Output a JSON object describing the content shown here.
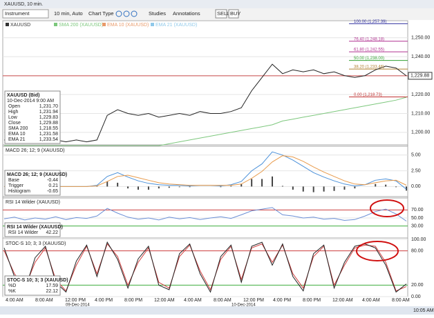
{
  "window_title": "XAUUSD, 10 min.",
  "toolbar": {
    "instrument": "Instrument",
    "interval": "10 min, Auto",
    "chart_type": "Chart Type",
    "studies": "Studies",
    "annotations": "Annotations",
    "sell": "SELL",
    "buy": "BUY"
  },
  "price_panel": {
    "legend": [
      "XAUUSD",
      "SMA 200 (XAUUSD)",
      "EMA 10 (XAUUSD)",
      "EMA 21 (XAUUSD)"
    ],
    "legend_colors": [
      "#333333",
      "#7cc77c",
      "#e89a6a",
      "#8fc9ea"
    ],
    "info": {
      "title": "XAUUSD (Bid)",
      "date": "10-Dec-2014 9:00 AM",
      "rows": [
        [
          "Open",
          "1,231.70"
        ],
        [
          "High",
          "1,231.94"
        ],
        [
          "Low",
          "1,229.83"
        ],
        [
          "Close",
          "1,229.88"
        ],
        [
          "SMA 200",
          "1,218.55"
        ],
        [
          "EMA 10",
          "1,231.58"
        ],
        [
          "EMA 21",
          "1,233.54"
        ]
      ]
    },
    "ylim": [
      1193.4,
      1259
    ],
    "yticks": [
      {
        "value": 1250,
        "label": "1,250.00"
      },
      {
        "value": 1240,
        "label": "1,240.00"
      },
      {
        "value": 1230,
        "label": "1,230.00"
      },
      {
        "value": 1220,
        "label": "1,220.00"
      },
      {
        "value": 1210,
        "label": "1,210.00"
      },
      {
        "value": 1200,
        "label": "1,200.00"
      }
    ],
    "series": [
      {
        "color": "#222222",
        "values": [
          1196,
          1195,
          1196,
          1195,
          1195,
          1196,
          1195,
          1196,
          1195,
          1196,
          1209,
          1212,
          1210,
          1209,
          1210,
          1208,
          1209,
          1210,
          1209,
          1211,
          1210,
          1210,
          1211,
          1213,
          1222,
          1229,
          1236,
          1231,
          1233,
          1232,
          1233,
          1231,
          1232,
          1230,
          1229,
          1230,
          1233,
          1235,
          1234,
          1229.88
        ]
      },
      {
        "color": "#7cc77c",
        "values": [
          1193,
          1193,
          1193,
          1193,
          1193,
          1193,
          1193,
          1193,
          1193,
          1193,
          1193,
          1193,
          1193,
          1193,
          1193,
          1193,
          1194,
          1195,
          1196,
          1197,
          1198,
          1199,
          1200,
          1201,
          1202,
          1203,
          1204,
          1206,
          1207,
          1208,
          1209,
          1210,
          1211,
          1212,
          1213,
          1214,
          1215,
          1216,
          1217,
          1218.55
        ]
      }
    ],
    "last_price": {
      "value": 1229.88,
      "label": "1,229.88"
    },
    "fib_levels": [
      {
        "value": 1257.39,
        "label": "100.00 (1,257.39)",
        "color": "#3030a0"
      },
      {
        "value": 1248.18,
        "label": "76.40 (1,248.18)",
        "color": "#b03090"
      },
      {
        "value": 1242.55,
        "label": "61.80 (1,242.55)",
        "color": "#b03090"
      },
      {
        "value": 1238,
        "label": "50.00 (1,238.00)",
        "color": "#30a030"
      },
      {
        "value": 1233.46,
        "label": "38.20 (1,233.46)",
        "color": "#b08030"
      },
      {
        "value": 1218.73,
        "label": "0.00 (1,218.73)",
        "color": "#c03030"
      }
    ]
  },
  "macd_panel": {
    "header": "MACD 26; 12; 9 (XAUUSD)",
    "info": {
      "title": "MACD 26; 12; 9 (XAUUSD)",
      "rows": [
        [
          "Base",
          "-0.44"
        ],
        [
          "Trigger",
          "0.21"
        ],
        [
          "Histogram",
          "-0.65"
        ]
      ]
    },
    "ylim": [
      -1.6,
      6.4
    ],
    "yticks": [
      {
        "value": 5,
        "label": "5.00"
      },
      {
        "value": 2.5,
        "label": "2.50"
      },
      {
        "value": 0,
        "label": "0.00"
      }
    ],
    "series": [
      {
        "color": "#4a90d9",
        "values": [
          0,
          0,
          0,
          0,
          0,
          0,
          0,
          0,
          0,
          0.2,
          1.6,
          2.2,
          1.5,
          0.9,
          0.5,
          0.3,
          0.2,
          0.2,
          0.1,
          0.2,
          0.2,
          0.1,
          0.3,
          0.8,
          2.5,
          3.6,
          5.5,
          5,
          4.2,
          3.2,
          2.2,
          1.5,
          0.9,
          0.4,
          0.1,
          0.3,
          1,
          1.2,
          0.9,
          -0.44
        ]
      },
      {
        "color": "#e89a4a",
        "values": [
          0,
          0,
          0,
          0,
          0,
          0,
          0,
          0,
          0,
          0.1,
          0.8,
          1.6,
          1.8,
          1.4,
          1,
          0.6,
          0.4,
          0.3,
          0.2,
          0.2,
          0.2,
          0.2,
          0.2,
          0.4,
          1.3,
          2.4,
          3.9,
          4.9,
          4.7,
          4,
          3.1,
          2.3,
          1.6,
          0.9,
          0.4,
          0.3,
          0.6,
          0.9,
          1,
          0.21
        ]
      }
    ],
    "histogram": [
      0,
      0,
      0,
      0,
      0,
      0,
      0,
      0,
      0,
      0.1,
      0.8,
      0.6,
      -0.3,
      -0.5,
      -0.5,
      -0.3,
      -0.2,
      -0.1,
      -0.1,
      0,
      0,
      -0.1,
      0.1,
      0.4,
      1.2,
      1.2,
      1.6,
      0.1,
      -0.5,
      -0.8,
      -0.9,
      -0.8,
      -0.7,
      -0.5,
      -0.3,
      0,
      0.4,
      0.3,
      -0.1,
      -0.65
    ]
  },
  "rsi_panel": {
    "header": "RSI 14 Wilder (XAUUSD)",
    "info": {
      "title": "RSI 14 Wilder (XAUUSD)",
      "rows": [
        [
          "RSI 14 Wilder",
          "42.22"
        ]
      ]
    },
    "ylim": [
      0,
      100
    ],
    "yticks": [
      {
        "value": 70,
        "label": "70.00"
      },
      {
        "value": 50,
        "label": "50.00"
      },
      {
        "value": 30,
        "label": "30.00"
      }
    ],
    "reference_lines": [
      {
        "value": 70,
        "color": "#d04040"
      },
      {
        "value": 30,
        "color": "#40b040"
      }
    ],
    "series": [
      {
        "color": "#6b8fd6",
        "values": [
          48,
          52,
          45,
          50,
          47,
          53,
          46,
          51,
          49,
          55,
          74,
          62,
          52,
          47,
          50,
          45,
          52,
          48,
          51,
          46,
          50,
          53,
          49,
          58,
          68,
          72,
          76,
          58,
          55,
          50,
          52,
          47,
          49,
          44,
          46,
          55,
          66,
          72,
          60,
          42.22
        ]
      }
    ]
  },
  "stoch_panel": {
    "header": "STOC-S 10; 3; 3 (XAUUSD)",
    "info": {
      "title": "STOC-S 10; 3; 3 (XAUUSD)",
      "rows": [
        [
          "%D",
          "17.59"
        ],
        [
          "%K",
          "22.12"
        ]
      ]
    },
    "ylim": [
      0,
      100
    ],
    "yticks": [
      {
        "value": 100,
        "label": "100.00"
      },
      {
        "value": 80,
        "label": "80.00"
      },
      {
        "value": 20,
        "label": "20.00"
      },
      {
        "value": 0,
        "label": "0.00"
      }
    ],
    "reference_lines": [
      {
        "value": 80,
        "color": "#d04040"
      },
      {
        "value": 20,
        "color": "#40b040"
      }
    ],
    "series": [
      {
        "color": "#d04040",
        "values": [
          80,
          40,
          15,
          60,
          85,
          30,
          10,
          55,
          88,
          40,
          92,
          70,
          20,
          60,
          85,
          25,
          15,
          70,
          90,
          45,
          12,
          65,
          88,
          30,
          85,
          92,
          60,
          90,
          40,
          15,
          70,
          88,
          20,
          55,
          85,
          90,
          88,
          60,
          10,
          17.59
        ]
      },
      {
        "color": "#222222",
        "values": [
          85,
          35,
          10,
          68,
          88,
          25,
          8,
          62,
          90,
          35,
          95,
          65,
          15,
          66,
          88,
          20,
          12,
          75,
          92,
          40,
          8,
          70,
          90,
          25,
          88,
          95,
          55,
          92,
          35,
          10,
          75,
          90,
          15,
          60,
          88,
          92,
          85,
          55,
          8,
          22.12
        ]
      }
    ]
  },
  "time_axis": {
    "labels": [
      "4:00 AM",
      "8:00 AM",
      "12:00 PM",
      "4:00 PM",
      "8:00 PM",
      "12:00 AM",
      "4:00 AM",
      "8:00 AM",
      "12:00 PM",
      "4:00 PM",
      "8:00 PM",
      "12:00 AM",
      "4:00 AM",
      "8:00 AM"
    ],
    "dates": [
      "09-Dec-2014",
      "10-Dec-2014"
    ]
  },
  "taskbar": {
    "clock": "10:05 AM"
  }
}
